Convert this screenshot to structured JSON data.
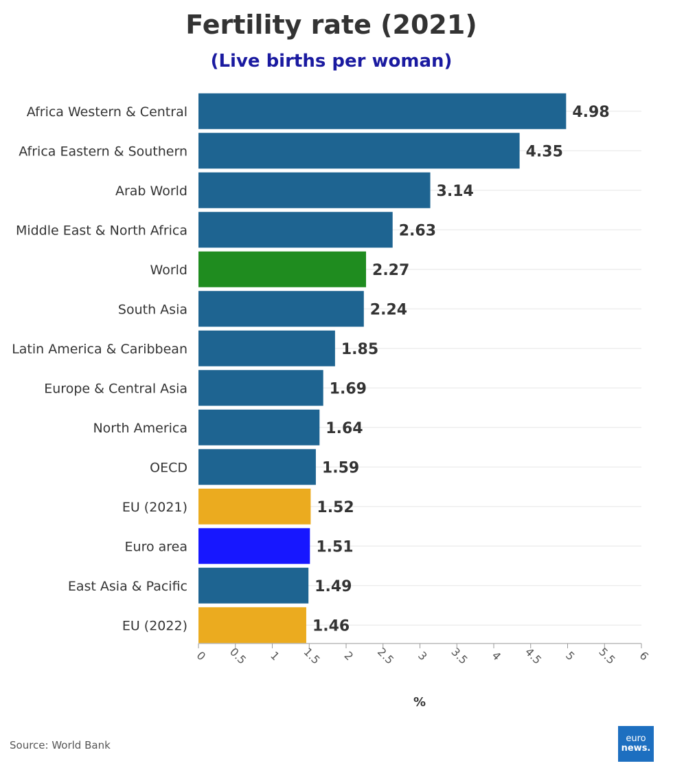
{
  "page": {
    "title": "Fertility rate (2021)",
    "subtitle": "(Live births per woman)",
    "source": "Source: World Bank",
    "logo": {
      "line1": "euro",
      "line2": "news."
    }
  },
  "chart_data": {
    "type": "bar",
    "orientation": "horizontal",
    "title": "Fertility rate (2021)",
    "subtitle": "(Live births per woman)",
    "xlabel": "%",
    "ylabel": "",
    "xlim": [
      0,
      6
    ],
    "xticks": [
      0,
      0.5,
      1,
      1.5,
      2,
      2.5,
      3,
      3.5,
      4,
      4.5,
      5,
      5.5,
      6
    ],
    "grid": true,
    "legend": "none",
    "categories": [
      "Africa Western & Central",
      "Africa Eastern & Southern",
      "Arab World",
      "Middle East & North Africa",
      "World",
      "South Asia",
      "Latin America & Caribbean",
      "Europe & Central Asia",
      "North America",
      "OECD",
      "EU (2021)",
      "Euro area",
      "East Asia & Pacific",
      "EU (2022)"
    ],
    "values": [
      4.98,
      4.35,
      3.14,
      2.63,
      2.27,
      2.24,
      1.85,
      1.69,
      1.64,
      1.59,
      1.52,
      1.51,
      1.49,
      1.46
    ],
    "colors": [
      "#1e6491",
      "#1e6491",
      "#1e6491",
      "#1e6491",
      "#1f8c1f",
      "#1e6491",
      "#1e6491",
      "#1e6491",
      "#1e6491",
      "#1e6491",
      "#ebab1f",
      "#1717ff",
      "#1e6491",
      "#ebab1f"
    ]
  }
}
